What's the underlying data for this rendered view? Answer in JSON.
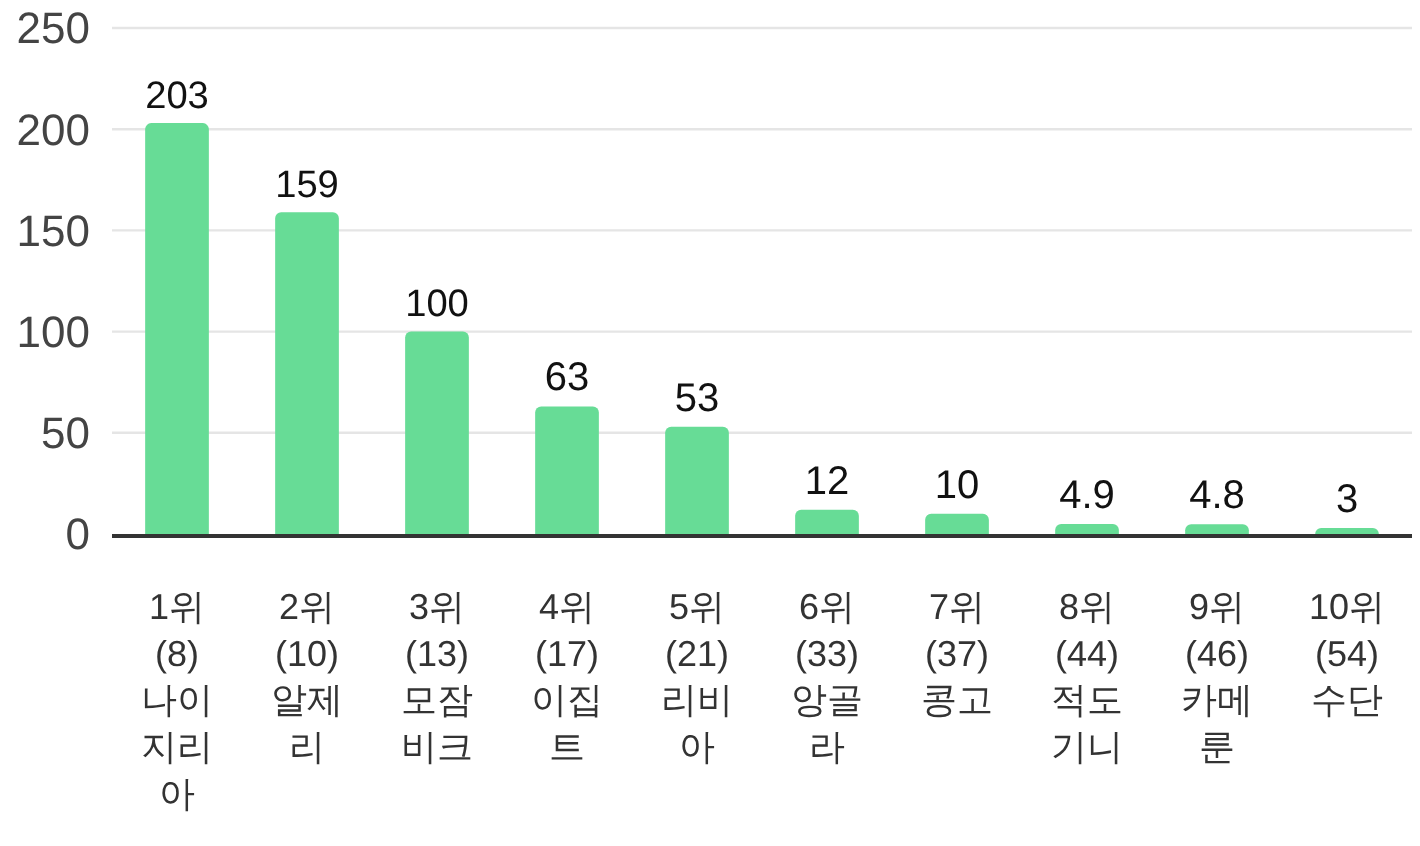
{
  "chart_data": {
    "type": "bar",
    "categories": [
      "1위\n(8)\n나이\n지리\n아",
      "2위\n(10)\n알제\n리",
      "3위\n(13)\n모잠\n비크",
      "4위\n(17)\n이집\n트",
      "5위\n(21)\n리비\n아",
      "6위\n(33)\n앙골\n라",
      "7위\n(37)\n콩고",
      "8위\n(44)\n적도\n기니",
      "9위\n(46)\n카메\n룬",
      "10위\n(54)\n수단"
    ],
    "values": [
      203,
      159,
      100,
      63,
      53,
      12,
      10,
      4.9,
      4.8,
      3
    ],
    "color": "#67dc96",
    "ylim": [
      0,
      250
    ],
    "yticks": [
      0,
      50,
      100,
      150,
      200,
      250
    ],
    "grid": "y",
    "data_labels": true
  }
}
